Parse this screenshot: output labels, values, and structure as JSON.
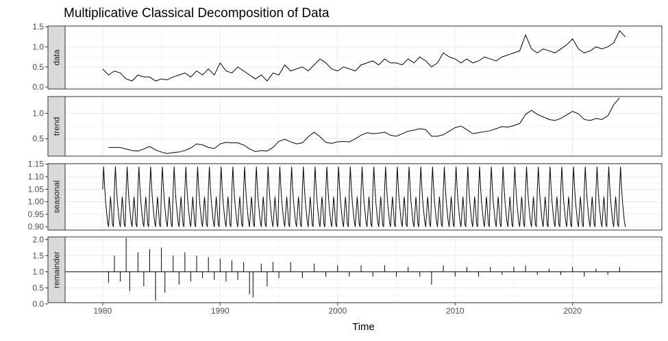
{
  "chart_data": {
    "type": "line",
    "title": "Multiplicative Classical Decomposition of Data",
    "xlabel": "Time",
    "x_ticks": [
      1980,
      1990,
      2000,
      2010,
      2020
    ],
    "x_range": [
      1976.8,
      2027.6
    ],
    "grid": true,
    "colors": {
      "line": "#000000",
      "strip_fill": "#d9d9d9",
      "grid_major": "#ebebeb",
      "grid_minor": "#f5f5f5",
      "panel_border": "#333333",
      "background": "#ffffff"
    },
    "panels": [
      {
        "name": "data",
        "ylim": [
          -0.05,
          1.52
        ],
        "y_ticks": [
          0.0,
          0.5,
          1.0,
          1.5
        ],
        "y_tick_labels": [
          "0.0",
          "0.5",
          "1.0",
          "1.5"
        ],
        "series": {
          "x": [
            1980.0,
            1980.5,
            1981.0,
            1981.5,
            1982.0,
            1982.5,
            1983.0,
            1983.5,
            1984.0,
            1984.5,
            1985.0,
            1985.5,
            1986.0,
            1986.5,
            1987.0,
            1987.5,
            1988.0,
            1988.5,
            1989.0,
            1989.5,
            1990.0,
            1990.5,
            1991.0,
            1991.5,
            1992.0,
            1992.5,
            1993.0,
            1993.5,
            1994.0,
            1994.5,
            1995.0,
            1995.5,
            1996.0,
            1996.5,
            1997.0,
            1997.5,
            1998.0,
            1998.5,
            1999.0,
            1999.5,
            2000.0,
            2000.5,
            2001.0,
            2001.5,
            2002.0,
            2002.5,
            2003.0,
            2003.5,
            2004.0,
            2004.5,
            2005.0,
            2005.5,
            2006.0,
            2006.5,
            2007.0,
            2007.5,
            2008.0,
            2008.5,
            2009.0,
            2009.5,
            2010.0,
            2010.5,
            2011.0,
            2011.5,
            2012.0,
            2012.5,
            2013.0,
            2013.5,
            2014.0,
            2014.5,
            2015.0,
            2015.5,
            2016.0,
            2016.5,
            2017.0,
            2017.5,
            2018.0,
            2018.5,
            2019.0,
            2019.5,
            2020.0,
            2020.5,
            2021.0,
            2021.5,
            2022.0,
            2022.5,
            2023.0,
            2023.5,
            2024.0,
            2024.5
          ],
          "y": [
            0.45,
            0.3,
            0.4,
            0.35,
            0.2,
            0.15,
            0.3,
            0.25,
            0.25,
            0.15,
            0.2,
            0.18,
            0.25,
            0.3,
            0.35,
            0.25,
            0.4,
            0.3,
            0.45,
            0.3,
            0.6,
            0.4,
            0.35,
            0.5,
            0.4,
            0.3,
            0.2,
            0.3,
            0.15,
            0.35,
            0.3,
            0.55,
            0.4,
            0.45,
            0.5,
            0.4,
            0.55,
            0.7,
            0.6,
            0.45,
            0.4,
            0.5,
            0.45,
            0.4,
            0.55,
            0.6,
            0.65,
            0.55,
            0.7,
            0.6,
            0.6,
            0.55,
            0.7,
            0.6,
            0.75,
            0.65,
            0.5,
            0.6,
            0.85,
            0.75,
            0.7,
            0.6,
            0.7,
            0.6,
            0.65,
            0.75,
            0.7,
            0.65,
            0.75,
            0.8,
            0.85,
            0.9,
            1.3,
            0.95,
            0.85,
            0.95,
            0.9,
            0.85,
            0.95,
            1.05,
            1.2,
            0.95,
            0.85,
            0.9,
            1.0,
            0.95,
            1.0,
            1.1,
            1.4,
            1.25
          ]
        }
      },
      {
        "name": "trend",
        "ylim": [
          0.16,
          1.33
        ],
        "y_ticks": [
          0.5,
          1.0
        ],
        "y_tick_labels": [
          "0.5",
          "1.0"
        ],
        "series": {
          "x": [
            1980.5,
            1981.5,
            1982.0,
            1982.5,
            1983.0,
            1983.5,
            1984.0,
            1984.5,
            1985.0,
            1985.5,
            1986.0,
            1986.5,
            1987.0,
            1987.5,
            1988.0,
            1988.5,
            1989.0,
            1989.5,
            1990.0,
            1990.5,
            1991.0,
            1991.5,
            1992.0,
            1992.5,
            1993.0,
            1993.5,
            1994.0,
            1994.5,
            1995.0,
            1995.5,
            1996.0,
            1996.5,
            1997.0,
            1997.5,
            1998.0,
            1998.5,
            1999.0,
            1999.5,
            2000.0,
            2000.5,
            2001.0,
            2001.5,
            2002.0,
            2002.5,
            2003.0,
            2003.5,
            2004.0,
            2004.5,
            2005.0,
            2005.5,
            2006.0,
            2006.5,
            2007.0,
            2007.5,
            2008.0,
            2008.5,
            2009.0,
            2009.5,
            2010.0,
            2010.5,
            2011.0,
            2011.5,
            2012.0,
            2012.5,
            2013.0,
            2013.5,
            2014.0,
            2014.5,
            2015.0,
            2015.5,
            2016.0,
            2016.5,
            2017.0,
            2017.5,
            2018.0,
            2018.5,
            2019.0,
            2019.5,
            2020.0,
            2020.5,
            2021.0,
            2021.5,
            2022.0,
            2022.5,
            2023.0,
            2023.5,
            2024.0
          ],
          "y": [
            0.33,
            0.33,
            0.3,
            0.27,
            0.26,
            0.3,
            0.35,
            0.28,
            0.24,
            0.21,
            0.23,
            0.24,
            0.27,
            0.32,
            0.4,
            0.38,
            0.33,
            0.31,
            0.4,
            0.43,
            0.42,
            0.42,
            0.38,
            0.3,
            0.25,
            0.27,
            0.26,
            0.33,
            0.45,
            0.49,
            0.44,
            0.4,
            0.42,
            0.54,
            0.63,
            0.54,
            0.43,
            0.41,
            0.44,
            0.45,
            0.44,
            0.5,
            0.57,
            0.62,
            0.6,
            0.61,
            0.63,
            0.57,
            0.55,
            0.6,
            0.65,
            0.67,
            0.7,
            0.68,
            0.55,
            0.55,
            0.58,
            0.65,
            0.72,
            0.75,
            0.68,
            0.6,
            0.62,
            0.64,
            0.66,
            0.7,
            0.74,
            0.73,
            0.76,
            0.8,
            0.98,
            1.06,
            0.98,
            0.93,
            0.88,
            0.86,
            0.9,
            0.97,
            1.04,
            0.99,
            0.88,
            0.86,
            0.9,
            0.88,
            0.95,
            1.17,
            1.3
          ]
        }
      },
      {
        "name": "seasonal",
        "ylim": [
          0.887,
          1.152
        ],
        "y_ticks": [
          0.9,
          0.95,
          1.0,
          1.05,
          1.1,
          1.15
        ],
        "y_tick_labels": [
          "0.90",
          "0.95",
          "1.00",
          "1.05",
          "1.10",
          "1.15"
        ],
        "start": 1980.0,
        "end": 2024.5,
        "period": 1,
        "pattern": [
          1.05,
          1.14,
          1.06,
          1.0,
          0.96,
          0.92,
          0.9,
          0.96,
          1.02,
          0.97,
          0.91,
          0.9
        ]
      },
      {
        "name": "remainder",
        "ylim": [
          0.04,
          2.08
        ],
        "y_ticks": [
          0.0,
          0.5,
          1.0,
          1.5,
          2.0
        ],
        "y_tick_labels": [
          "0.0",
          "0.5",
          "1.0",
          "1.5",
          "2.0"
        ],
        "baseline": 1.0,
        "series": {
          "x": [
            1980.5,
            1981.0,
            1981.5,
            1982.0,
            1982.3,
            1983.0,
            1983.5,
            1984.0,
            1984.5,
            1985.0,
            1985.3,
            1986.0,
            1986.5,
            1987.0,
            1987.5,
            1988.0,
            1988.5,
            1989.0,
            1989.5,
            1990.0,
            1990.5,
            1991.0,
            1991.5,
            1992.0,
            1992.5,
            1992.8,
            1993.5,
            1994.0,
            1994.5,
            1995.0,
            1996.0,
            1997.0,
            1998.0,
            1999.0,
            2000.0,
            2001.0,
            2002.0,
            2003.0,
            2004.0,
            2005.0,
            2006.0,
            2007.0,
            2008.0,
            2009.0,
            2010.0,
            2011.0,
            2012.0,
            2013.0,
            2014.0,
            2015.0,
            2016.0,
            2017.0,
            2018.0,
            2019.0,
            2020.0,
            2021.0,
            2022.0,
            2023.0,
            2024.0
          ],
          "y": [
            0.65,
            1.5,
            0.7,
            2.05,
            0.4,
            1.6,
            0.55,
            1.7,
            0.1,
            1.75,
            0.35,
            1.5,
            0.6,
            1.6,
            0.7,
            1.5,
            0.8,
            1.45,
            0.75,
            1.4,
            0.7,
            1.35,
            0.75,
            1.3,
            0.3,
            0.2,
            1.25,
            0.55,
            1.3,
            0.8,
            1.3,
            0.8,
            1.25,
            0.85,
            1.2,
            0.85,
            1.2,
            0.85,
            1.2,
            0.85,
            1.15,
            0.85,
            0.6,
            1.2,
            0.85,
            1.15,
            0.85,
            1.15,
            0.9,
            1.15,
            1.2,
            0.9,
            1.1,
            0.9,
            1.15,
            0.85,
            1.1,
            0.9,
            1.15
          ]
        }
      }
    ]
  }
}
